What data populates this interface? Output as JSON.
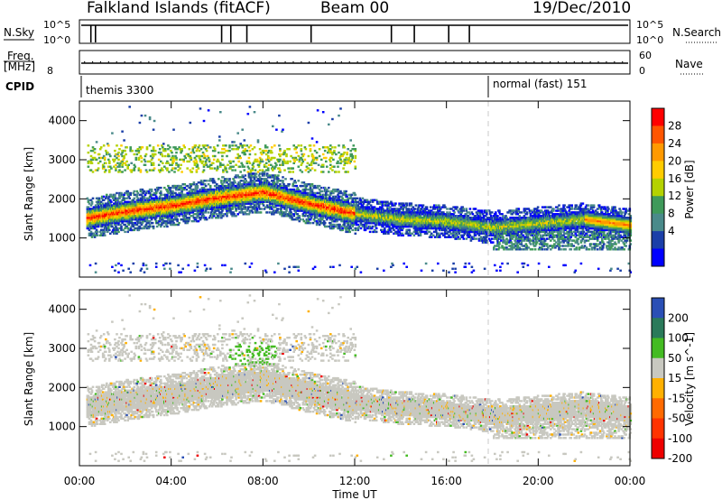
{
  "header": {
    "station": "Falkland Islands (fitACF)",
    "beam": "Beam 00",
    "date": "19/Dec/2010"
  },
  "nsky_panel": {
    "left_label": "N.Sky",
    "right_label": "N.Search",
    "left_ticks": [
      "10^5",
      "10^0"
    ],
    "right_ticks": [
      "10^5",
      "10^0"
    ]
  },
  "freq_panel": {
    "left_label": "Freq.",
    "left_unit": "[MHz]",
    "right_label": "Nave",
    "left_tick": "8",
    "right_ticks": [
      "60",
      "0"
    ]
  },
  "cpid": {
    "label": "CPID",
    "segments": [
      {
        "name": "themis 3300",
        "start_hour": 0.0
      },
      {
        "name": "normal (fast) 151",
        "start_hour": 18.0
      }
    ]
  },
  "x_axis": {
    "label": "Time UT",
    "ticks": [
      "00:00",
      "04:00",
      "08:00",
      "12:00",
      "16:00",
      "20:00",
      "00:00"
    ],
    "range_hours": [
      0,
      24
    ]
  },
  "power_panel": {
    "ylabel": "Slant Range [km]",
    "yticks": [
      "4000",
      "3000",
      "2000",
      "1000"
    ],
    "colorbar_label": "Power [dB]",
    "colorbar_ticks": [
      "28",
      "24",
      "20",
      "16",
      "12",
      "8",
      "4"
    ],
    "colors": [
      "#ff0000",
      "#ff5500",
      "#ff9900",
      "#ffcc00",
      "#b4d200",
      "#3f9a5a",
      "#4a8a8a",
      "#1b3fa8",
      "#0000ff"
    ]
  },
  "velocity_panel": {
    "ylabel": "Slant Range [km]",
    "yticks": [
      "4000",
      "3000",
      "2000",
      "1000"
    ],
    "colorbar_label": "Velocity [m s^-1]",
    "colorbar_ticks": [
      "200",
      "100",
      "50",
      "15",
      "-15",
      "-50",
      "-100",
      "-200"
    ],
    "colors": [
      "#2a4fb5",
      "#2a7a5a",
      "#44bb22",
      "#c8c8c0",
      "#ffb000",
      "#ff6a00",
      "#ff3300",
      "#ee0000"
    ]
  },
  "chart_data": [
    {
      "type": "heatmap",
      "title": "Power",
      "xlabel": "Time UT",
      "ylabel": "Slant Range [km]",
      "xlim": [
        0,
        24
      ],
      "ylim": [
        0,
        4500
      ],
      "zlabel": "Power [dB]",
      "zlim": [
        0,
        32
      ],
      "main_band_center_km": [
        [
          0,
          1500
        ],
        [
          2,
          1700
        ],
        [
          4,
          1850
        ],
        [
          6,
          2050
        ],
        [
          8,
          2200
        ],
        [
          10,
          1900
        ],
        [
          12,
          1650
        ],
        [
          14,
          1500
        ],
        [
          16,
          1450
        ],
        [
          18,
          1300
        ],
        [
          20,
          1400
        ],
        [
          22,
          1500
        ],
        [
          24,
          1350
        ]
      ],
      "peak_power_db": [
        [
          0,
          28
        ],
        [
          4,
          26
        ],
        [
          8,
          27
        ],
        [
          12,
          22
        ],
        [
          16,
          14
        ],
        [
          20,
          16
        ],
        [
          23,
          22
        ]
      ]
    },
    {
      "type": "heatmap",
      "title": "Velocity",
      "xlabel": "Time UT",
      "ylabel": "Slant Range [km]",
      "xlim": [
        0,
        24
      ],
      "ylim": [
        0,
        4500
      ],
      "zlabel": "Velocity [m s^-1]",
      "zlim": [
        -200,
        200
      ],
      "dominant_velocity": "-15 to 15 (ground scatter)"
    }
  ]
}
